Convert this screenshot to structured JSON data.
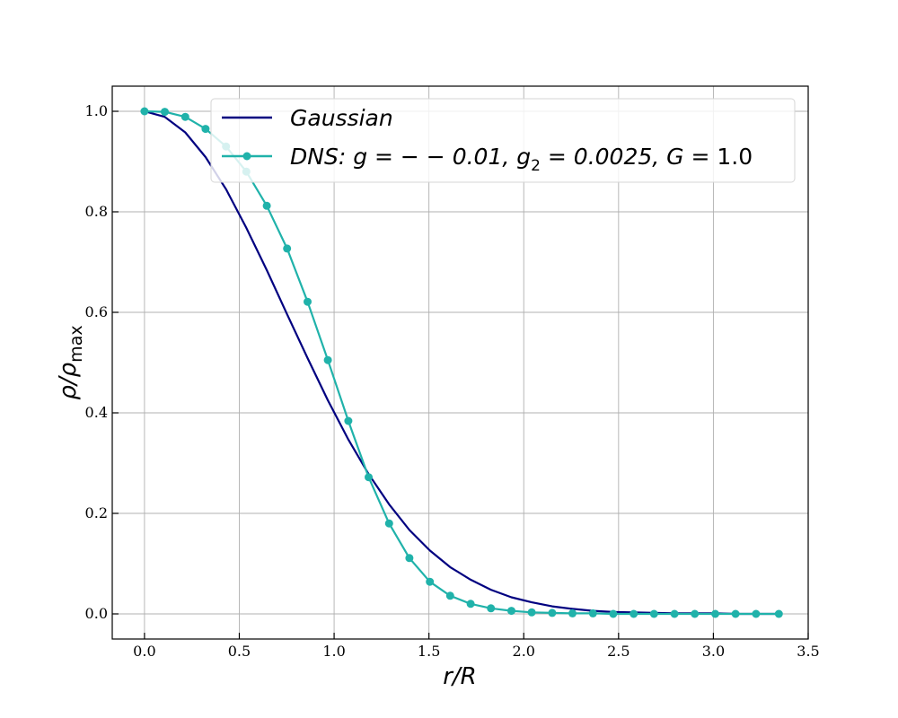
{
  "chart_data": {
    "type": "line",
    "xlabel": {
      "main": "r/R"
    },
    "ylabel": {
      "main": "ρ/ρ",
      "sub": "max"
    },
    "xlim": [
      -0.17,
      3.5
    ],
    "ylim": [
      -0.05,
      1.05
    ],
    "x_ticks": [
      "0.0",
      "0.5",
      "1.0",
      "1.5",
      "2.0",
      "2.5",
      "3.0",
      "3.5"
    ],
    "y_ticks": [
      "0.0",
      "0.2",
      "0.4",
      "0.6",
      "0.8",
      "1.0"
    ],
    "grid": true,
    "legend_position": "top-right",
    "series": [
      {
        "name": "Gaussian",
        "color": "#000080",
        "markers": false,
        "x": [
          0.0,
          0.107,
          0.215,
          0.322,
          0.43,
          0.537,
          0.645,
          0.752,
          0.86,
          0.967,
          1.075,
          1.182,
          1.29,
          1.397,
          1.505,
          1.612,
          1.72,
          1.827,
          1.935,
          2.042,
          2.15,
          2.257,
          2.365,
          2.472,
          2.58,
          2.687,
          2.795,
          2.902,
          3.01,
          3.117,
          3.225,
          3.345
        ],
        "y": [
          1.0,
          0.989,
          0.958,
          0.909,
          0.845,
          0.768,
          0.684,
          0.596,
          0.509,
          0.425,
          0.347,
          0.278,
          0.218,
          0.167,
          0.126,
          0.093,
          0.068,
          0.048,
          0.033,
          0.023,
          0.015,
          0.01,
          0.006,
          0.004,
          0.003,
          0.002,
          0.001,
          0.001,
          0.001,
          0.0,
          0.0,
          0.0
        ]
      },
      {
        "name": "DNS",
        "color": "#20b2aa",
        "markers": true,
        "x": [
          0.0,
          0.107,
          0.215,
          0.322,
          0.43,
          0.537,
          0.645,
          0.752,
          0.86,
          0.967,
          1.075,
          1.182,
          1.29,
          1.397,
          1.505,
          1.612,
          1.72,
          1.827,
          1.935,
          2.042,
          2.15,
          2.257,
          2.365,
          2.472,
          2.58,
          2.687,
          2.795,
          2.902,
          3.01,
          3.117,
          3.225,
          3.345
        ],
        "y": [
          1.0,
          0.999,
          0.989,
          0.965,
          0.93,
          0.88,
          0.812,
          0.727,
          0.621,
          0.505,
          0.384,
          0.272,
          0.18,
          0.111,
          0.064,
          0.036,
          0.02,
          0.011,
          0.006,
          0.003,
          0.002,
          0.001,
          0.001,
          0.0,
          0.0,
          0.0,
          0.0,
          0.0,
          0.0,
          0.0,
          0.0,
          0.0
        ]
      }
    ]
  },
  "legend": {
    "gaussian_label": "Gaussian",
    "dns_label": {
      "a": "DNS",
      "b": ": g = − − 0.01, g",
      "b_sub": "2",
      "c": " = 0.0025, ",
      "d": "G",
      "e": " = 1.0"
    }
  }
}
